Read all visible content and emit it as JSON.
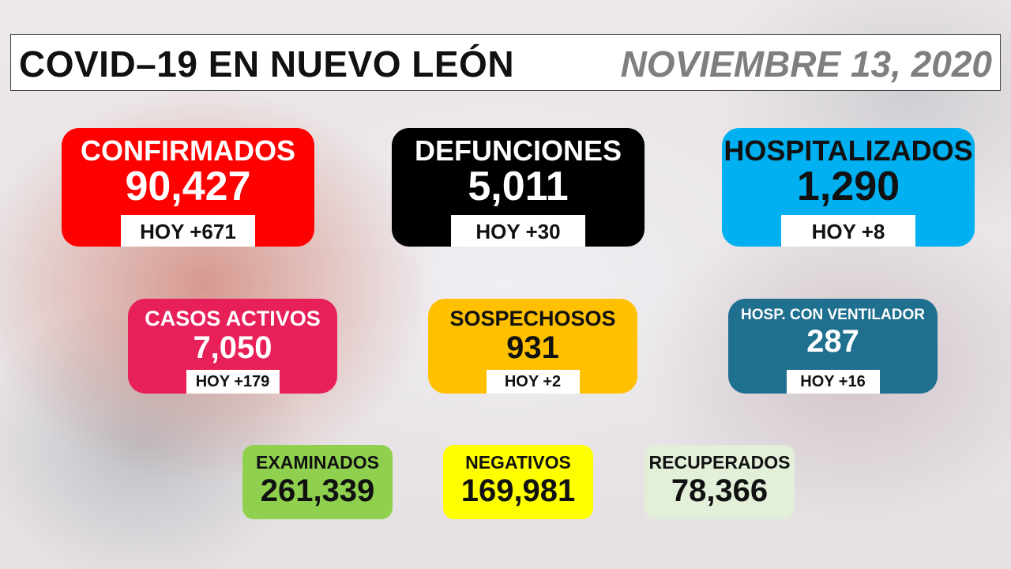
{
  "header": {
    "title": "COVID–19 EN NUEVO LEÓN",
    "date": "NOVIEMBRE 13, 2020"
  },
  "cards": {
    "confirmados": {
      "label": "CONFIRMADOS",
      "value": "90,427",
      "today": "HOY +671",
      "color": "#ff0000"
    },
    "defunciones": {
      "label": "DEFUNCIONES",
      "value": "5,011",
      "today": "HOY +30",
      "color": "#000000"
    },
    "hospitalizados": {
      "label": "HOSPITALIZADOS",
      "value": "1,290",
      "today": "HOY +8",
      "color": "#00b0f0"
    },
    "casos_activos": {
      "label": "CASOS ACTIVOS",
      "value": "7,050",
      "today": "HOY +179",
      "color": "#e8205a"
    },
    "sospechosos": {
      "label": "SOSPECHOSOS",
      "value": "931",
      "today": "HOY +2",
      "color": "#ffc000"
    },
    "ventilador": {
      "label": "HOSP. CON VENTILADOR",
      "value": "287",
      "today": "HOY +16",
      "color": "#1f6f8f"
    },
    "examinados": {
      "label": "EXAMINADOS",
      "value": "261,339",
      "color": "#8fd14f"
    },
    "negativos": {
      "label": "NEGATIVOS",
      "value": "169,981",
      "color": "#ffff00"
    },
    "recuperados": {
      "label": "RECUPERADOS",
      "value": "78,366",
      "color": "#e2efd9"
    }
  }
}
